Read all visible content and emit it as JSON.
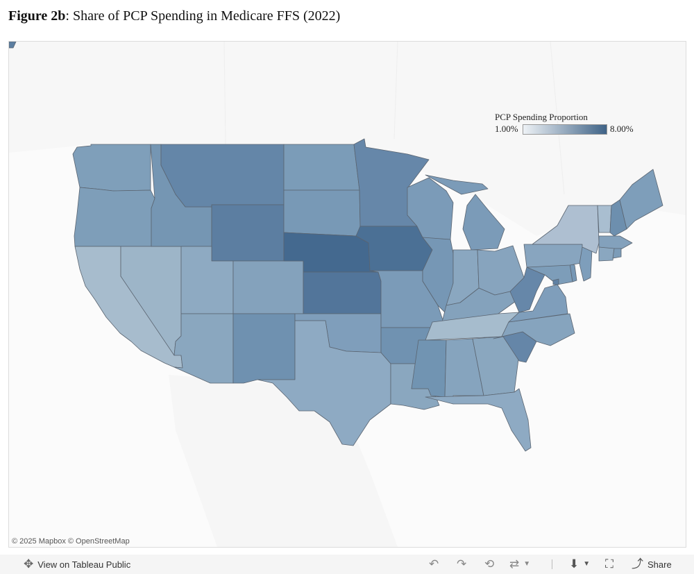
{
  "title": {
    "bold": "Figure 2b",
    "rest": ": Share of PCP Spending in Medicare FFS (2022)"
  },
  "legend": {
    "title": "PCP Spending Proportion",
    "min": "1.00%",
    "max": "8.00%",
    "color_min": "#eef2f6",
    "color_max": "#3f6387"
  },
  "attribution": "© 2025 Mapbox  © OpenStreetMap",
  "toolbar": {
    "view_label": "View on Tableau Public",
    "share_label": "Share",
    "icons": [
      "tableau-icon",
      "undo-icon",
      "redo-icon",
      "revert-icon",
      "refresh-icon",
      "download-icon",
      "fullscreen-icon",
      "share-icon"
    ]
  },
  "region_colors": {
    "WA": "#7f9fba",
    "OR": "#7e9eb9",
    "CA": "#a7bccd",
    "NV": "#9db5c8",
    "ID": "#7596b3",
    "MT": "#6486a8",
    "WY": "#5c7ea1",
    "UT": "#8eaac2",
    "AZ": "#8aa7bf",
    "CO": "#84a2bc",
    "NM": "#6f91b0",
    "ND": "#7b9cb8",
    "SD": "#7899b6",
    "NE": "#44698f",
    "KS": "#52759a",
    "OK": "#7f9ebb",
    "TX": "#8eaac3",
    "MN": "#6687a9",
    "IA": "#4b7095",
    "MO": "#7b9bb8",
    "AR": "#7092b1",
    "LA": "#8aa7bf",
    "WI": "#7b9bb8",
    "IL": "#7697b5",
    "MI": "#7b9bb8",
    "IN": "#8aa7c0",
    "OH": "#87a4be",
    "KY": "#84a2bc",
    "TN": "#a6bccd",
    "MS": "#7194b2",
    "AL": "#86a4be",
    "GA": "#8aa7bf",
    "FL": "#8eaac3",
    "SC": "#6586a8",
    "NC": "#86a4be",
    "VA": "#7f9ebb",
    "WV": "#6687a9",
    "PA": "#88a5bf",
    "NY": "#aebfd1",
    "VT": "#a9bed0",
    "NH": "#6d8fae",
    "ME": "#7e9eba",
    "MA": "#83a1bc",
    "CT": "#8aa7c0",
    "RI": "#7c9cb8",
    "NJ": "#7e9ebb",
    "DE": "#7697b5",
    "MD": "#7d9db9",
    "DC": "#5f81a4",
    "AK": "#5c7ea1"
  }
}
